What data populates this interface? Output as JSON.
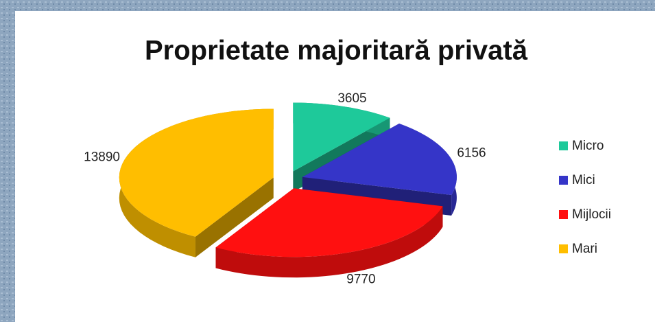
{
  "chart_data": {
    "type": "pie3d",
    "title": "Proprietate majoritară privată",
    "categories": [
      "Micro",
      "Mici",
      "Mijlocii",
      "Mari"
    ],
    "values": [
      3605,
      6156,
      9770,
      13890
    ],
    "colors": [
      "#1ec99a",
      "#3535c8",
      "#ff1010",
      "#ffbe00"
    ],
    "legend": "right"
  }
}
